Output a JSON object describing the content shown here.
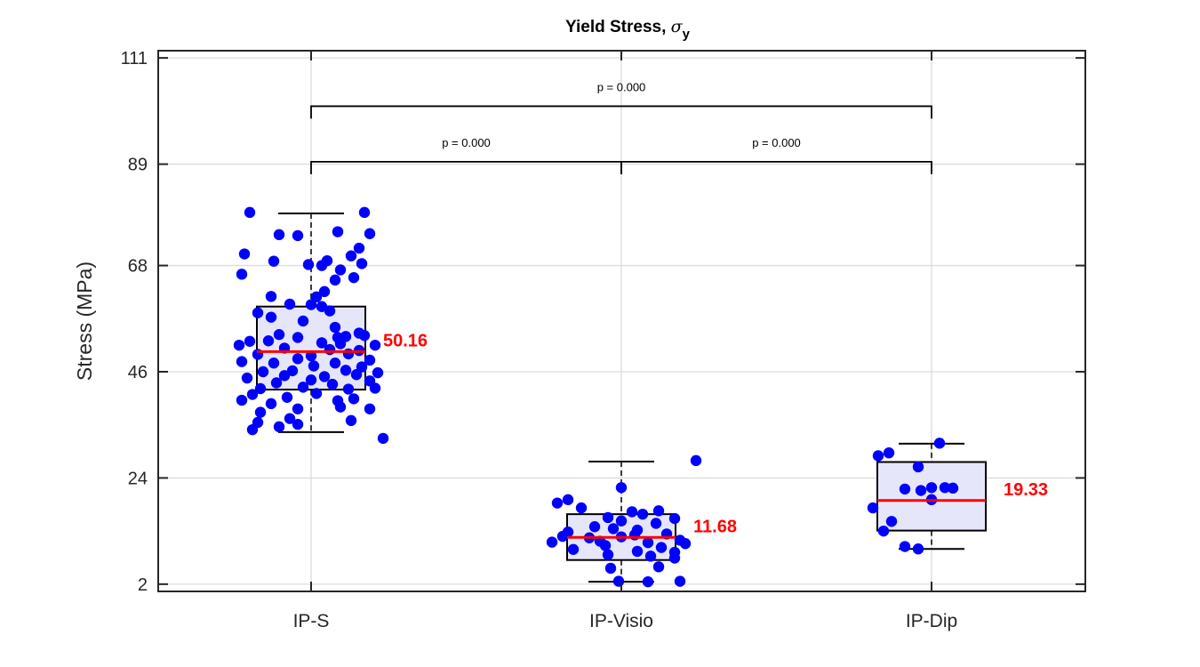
{
  "chart_data": {
    "type": "box",
    "title": "Yield Stress, ",
    "title_symbol": "σ",
    "title_subscript": "y",
    "ylabel": "Stress (MPa)",
    "xlabel": "",
    "ylim": [
      0.5,
      112.5
    ],
    "yticks": [
      2,
      24,
      46,
      68,
      89,
      111
    ],
    "grid": true,
    "colors": {
      "box_fill": "#e6e6fb",
      "median": "#ff0000",
      "points": "#0000ff",
      "frame": "#262626",
      "grid": "#dcdcdc"
    },
    "groups": [
      {
        "name": "IP-S",
        "median": 50.16,
        "q1": 42.3,
        "q3": 59.5,
        "whisker_low": 33.5,
        "whisker_high": 78.8,
        "median_label": "50.16",
        "points": [
          [
            -0.23,
            79.0
          ],
          [
            0.2,
            79.0
          ],
          [
            -0.12,
            74.4
          ],
          [
            -0.05,
            74.2
          ],
          [
            0.1,
            75.0
          ],
          [
            0.22,
            74.6
          ],
          [
            0.18,
            71.6
          ],
          [
            -0.25,
            70.4
          ],
          [
            0.15,
            70.0
          ],
          [
            -0.14,
            68.9
          ],
          [
            0.06,
            69.0
          ],
          [
            0.19,
            68.4
          ],
          [
            -0.01,
            68.2
          ],
          [
            0.04,
            68.0
          ],
          [
            0.11,
            67.1
          ],
          [
            -0.26,
            66.2
          ],
          [
            0.09,
            65.0
          ],
          [
            0.16,
            65.5
          ],
          [
            0.05,
            62.6
          ],
          [
            -0.15,
            61.6
          ],
          [
            0.02,
            61.5
          ],
          [
            -0.08,
            60.0
          ],
          [
            0.0,
            59.9
          ],
          [
            0.04,
            59.5
          ],
          [
            -0.2,
            58.2
          ],
          [
            -0.15,
            57.3
          ],
          [
            0.07,
            58.6
          ],
          [
            -0.03,
            56.5
          ],
          [
            0.09,
            55.2
          ],
          [
            0.18,
            54.0
          ],
          [
            -0.12,
            53.7
          ],
          [
            0.1,
            53.1
          ],
          [
            0.2,
            53.5
          ],
          [
            -0.05,
            53.1
          ],
          [
            0.13,
            53.3
          ],
          [
            -0.23,
            52.3
          ],
          [
            -0.27,
            51.5
          ],
          [
            -0.16,
            52.4
          ],
          [
            0.04,
            52.0
          ],
          [
            0.11,
            51.8
          ],
          [
            0.24,
            51.5
          ],
          [
            -0.1,
            50.9
          ],
          [
            0.07,
            50.6
          ],
          [
            0.18,
            50.4
          ],
          [
            -0.2,
            49.6
          ],
          [
            0.0,
            49.3
          ],
          [
            0.14,
            49.7
          ],
          [
            -0.05,
            48.7
          ],
          [
            0.22,
            48.4
          ],
          [
            -0.26,
            48.1
          ],
          [
            -0.14,
            47.8
          ],
          [
            0.09,
            47.8
          ],
          [
            0.01,
            47.2
          ],
          [
            0.19,
            47.0
          ],
          [
            -0.07,
            46.2
          ],
          [
            0.13,
            46.3
          ],
          [
            -0.18,
            46.0
          ],
          [
            0.25,
            45.8
          ],
          [
            -0.1,
            45.2
          ],
          [
            0.05,
            45.0
          ],
          [
            0.17,
            45.4
          ],
          [
            -0.24,
            44.7
          ],
          [
            0.0,
            44.3
          ],
          [
            0.22,
            44.1
          ],
          [
            -0.13,
            43.7
          ],
          [
            0.08,
            43.4
          ],
          [
            -0.19,
            42.5
          ],
          [
            0.14,
            42.4
          ],
          [
            -0.03,
            42.8
          ],
          [
            0.24,
            42.6
          ],
          [
            -0.22,
            41.3
          ],
          [
            0.02,
            41.5
          ],
          [
            -0.09,
            40.7
          ],
          [
            0.16,
            40.4
          ],
          [
            -0.26,
            40.1
          ],
          [
            0.1,
            40.0
          ],
          [
            -0.15,
            39.4
          ],
          [
            0.22,
            38.3
          ],
          [
            -0.05,
            38.3
          ],
          [
            0.11,
            38.7
          ],
          [
            -0.19,
            37.6
          ],
          [
            -0.08,
            36.3
          ],
          [
            0.15,
            35.9
          ],
          [
            -0.2,
            35.5
          ],
          [
            -0.05,
            35.1
          ],
          [
            -0.12,
            34.6
          ],
          [
            -0.22,
            34.0
          ],
          [
            0.27,
            32.2
          ]
        ]
      },
      {
        "name": "IP-Visio",
        "median": 11.68,
        "q1": 7.0,
        "q3": 16.5,
        "whisker_low": 2.5,
        "whisker_high": 27.4,
        "median_label": "11.68",
        "points": [
          [
            0.28,
            27.6
          ],
          [
            0.0,
            22.0
          ],
          [
            -0.2,
            19.5
          ],
          [
            -0.24,
            18.8
          ],
          [
            -0.15,
            17.8
          ],
          [
            0.14,
            17.2
          ],
          [
            0.04,
            17.0
          ],
          [
            0.08,
            16.5
          ],
          [
            -0.05,
            15.8
          ],
          [
            0.2,
            15.6
          ],
          [
            0.0,
            15.1
          ],
          [
            0.13,
            14.6
          ],
          [
            -0.1,
            13.9
          ],
          [
            -0.03,
            13.5
          ],
          [
            0.06,
            13.2
          ],
          [
            -0.2,
            12.8
          ],
          [
            0.17,
            12.4
          ],
          [
            0.05,
            12.2
          ],
          [
            -0.22,
            11.9
          ],
          [
            -0.12,
            11.6
          ],
          [
            0.0,
            11.8
          ],
          [
            0.22,
            11.1
          ],
          [
            -0.26,
            10.7
          ],
          [
            -0.08,
            10.9
          ],
          [
            0.1,
            10.6
          ],
          [
            0.24,
            10.4
          ],
          [
            -0.06,
            10.0
          ],
          [
            0.15,
            9.6
          ],
          [
            -0.18,
            9.2
          ],
          [
            0.2,
            8.6
          ],
          [
            0.06,
            8.8
          ],
          [
            -0.05,
            8.1
          ],
          [
            0.11,
            7.8
          ],
          [
            0.2,
            7.4
          ],
          [
            -0.04,
            5.3
          ],
          [
            0.14,
            5.6
          ],
          [
            -0.01,
            2.6
          ],
          [
            0.22,
            2.6
          ],
          [
            0.1,
            2.5
          ]
        ]
      },
      {
        "name": "IP-Dip",
        "median": 19.33,
        "q1": 13.1,
        "q3": 27.3,
        "whisker_low": 9.3,
        "whisker_high": 31.1,
        "median_label": "19.33",
        "points": [
          [
            0.03,
            31.2
          ],
          [
            -0.2,
            28.6
          ],
          [
            -0.16,
            29.2
          ],
          [
            -0.05,
            26.3
          ],
          [
            -0.1,
            21.7
          ],
          [
            -0.04,
            21.4
          ],
          [
            0.0,
            22.0
          ],
          [
            0.05,
            22.0
          ],
          [
            0.08,
            21.9
          ],
          [
            -0.22,
            17.8
          ],
          [
            0.0,
            19.5
          ],
          [
            -0.15,
            15.0
          ],
          [
            -0.18,
            13.0
          ],
          [
            -0.1,
            9.8
          ],
          [
            -0.05,
            9.3
          ]
        ]
      }
    ],
    "brackets": [
      {
        "from": 0,
        "to": 2,
        "label": "p = 0.000",
        "y": 101
      },
      {
        "from": 0,
        "to": 1,
        "label": "p = 0.000",
        "y": 89.5
      },
      {
        "from": 1,
        "to": 2,
        "label": "p = 0.000",
        "y": 89.5
      }
    ]
  }
}
